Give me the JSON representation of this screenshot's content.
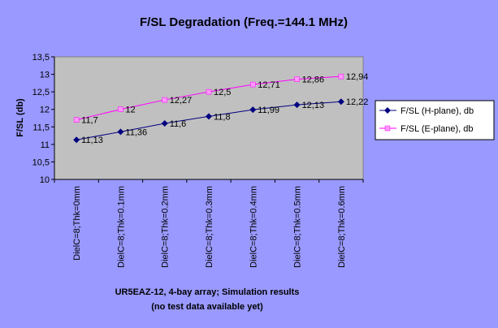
{
  "chart_data": {
    "type": "line",
    "title": "F/SL Degradation (Freq.=144.1 MHz)",
    "ylabel": "F/SL (db)",
    "xlabel_lines": [
      "UR5EAZ-12, 4-bay array; Simulation results",
      "(no test data available yet)"
    ],
    "categories": [
      "DielC=8;Thk=0mm",
      "DielC=8;Thk=0.1mm",
      "DielC=8;Thk=0.2mm",
      "DielC=8;Thk=0.3mm",
      "DielC=8;Thk=0.4mm",
      "DielC=8;Thk=0.5mm",
      "DielC=8;Thk=0.6mm"
    ],
    "ylim": [
      10,
      13.5
    ],
    "yticks": [
      "10",
      "10,5",
      "11",
      "11,5",
      "12",
      "12,5",
      "13",
      "13,5"
    ],
    "grid": false,
    "legend_position": "right",
    "series": [
      {
        "name": "F/SL (H-plane), db",
        "color": "#000080",
        "marker": "diamond",
        "values": [
          11.13,
          11.36,
          11.6,
          11.8,
          11.99,
          12.13,
          12.22
        ],
        "labels": [
          "11,13",
          "11,36",
          "11,6",
          "11,8",
          "11,99",
          "12,13",
          "12,22"
        ]
      },
      {
        "name": "F/SL (E-plane), db",
        "color": "#FF00FF",
        "marker": "square",
        "marker_color": "#FF99FF",
        "values": [
          11.7,
          12.0,
          12.27,
          12.5,
          12.71,
          12.86,
          12.94
        ],
        "labels": [
          "11,7",
          "12",
          "12,27",
          "12,5",
          "12,71",
          "12,86",
          "12,94"
        ]
      }
    ]
  }
}
